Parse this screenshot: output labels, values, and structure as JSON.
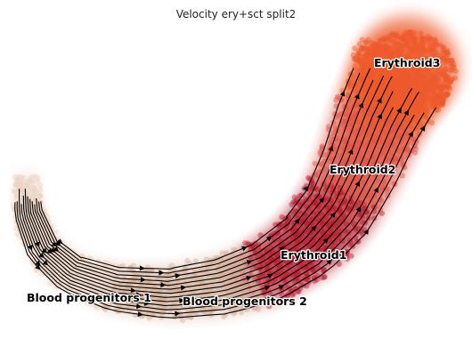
{
  "chart_data": {
    "type": "scatter",
    "title": "Velocity ery+sct split2",
    "xlabel": "",
    "ylabel": "",
    "embedding": "umap",
    "grid": false,
    "axes_visible": false,
    "overlay": "velocity-streamlines",
    "clusters": [
      {
        "name": "Blood progenitors 1",
        "color": "#ecd3c4",
        "label_pos": [
          0.3,
          -2.1
        ]
      },
      {
        "name": "Blood progenitors 2",
        "color": "#d5b29c",
        "label_pos": [
          3.8,
          -2.2
        ]
      },
      {
        "name": "Erythroid1",
        "color": "#b51d2e",
        "label_pos": [
          6.0,
          -0.9
        ]
      },
      {
        "name": "Erythroid2",
        "color": "#e0574a",
        "label_pos": [
          7.1,
          1.5
        ]
      },
      {
        "name": "Erythroid3",
        "color": "#ee5a2c",
        "label_pos": [
          8.1,
          4.5
        ]
      }
    ]
  }
}
